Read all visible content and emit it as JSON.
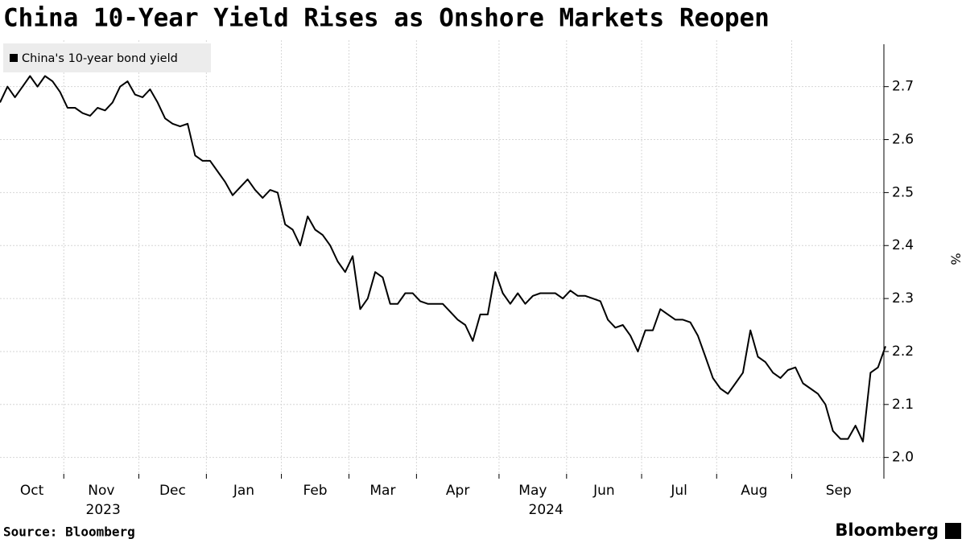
{
  "chart_data": {
    "type": "line",
    "title": "China 10-Year Yield Rises as Onshore Markets Reopen",
    "y_label": "%",
    "source": "Source: Bloomberg",
    "brand": "Bloomberg",
    "categories": [
      "Oct",
      null,
      null,
      null,
      null,
      null,
      null,
      null,
      null,
      "Nov",
      null,
      null,
      null,
      null,
      null,
      null,
      null,
      null,
      null,
      "Dec",
      null,
      null,
      null,
      null,
      null,
      null,
      null,
      null,
      "Jan",
      null,
      null,
      null,
      null,
      null,
      null,
      null,
      null,
      null,
      "Feb",
      null,
      null,
      null,
      null,
      null,
      null,
      null,
      null,
      "Mar",
      null,
      null,
      null,
      null,
      null,
      null,
      null,
      null,
      "Apr",
      null,
      null,
      null,
      null,
      null,
      null,
      null,
      null,
      null,
      null,
      "May",
      null,
      null,
      null,
      null,
      null,
      null,
      null,
      null,
      "Jun",
      null,
      null,
      null,
      null,
      null,
      null,
      null,
      null,
      null,
      "Jul",
      null,
      null,
      null,
      null,
      null,
      null,
      null,
      null,
      null,
      "Aug",
      null,
      null,
      null,
      null,
      null,
      null,
      null,
      null,
      null,
      "Sep",
      null,
      null,
      null,
      null,
      null,
      null,
      null,
      null,
      null,
      null,
      null,
      null
    ],
    "x_groups": [
      {
        "label": "2023",
        "from": "Oct",
        "to": "Dec"
      },
      {
        "label": "2024",
        "from": "Jan",
        "to": "Sep"
      }
    ],
    "series": [
      {
        "name": "China's 10-year bond yield",
        "color": "#000000",
        "values": [
          2.67,
          2.7,
          2.68,
          2.7,
          2.72,
          2.7,
          2.72,
          2.71,
          2.69,
          2.66,
          2.66,
          2.65,
          2.645,
          2.66,
          2.655,
          2.67,
          2.7,
          2.71,
          2.685,
          2.68,
          2.695,
          2.67,
          2.64,
          2.63,
          2.625,
          2.63,
          2.57,
          2.56,
          2.56,
          2.54,
          2.52,
          2.495,
          2.51,
          2.525,
          2.505,
          2.49,
          2.505,
          2.5,
          2.44,
          2.43,
          2.4,
          2.455,
          2.43,
          2.42,
          2.4,
          2.37,
          2.35,
          2.38,
          2.28,
          2.3,
          2.35,
          2.34,
          2.29,
          2.29,
          2.31,
          2.31,
          2.295,
          2.29,
          2.29,
          2.29,
          2.275,
          2.26,
          2.25,
          2.22,
          2.27,
          2.27,
          2.35,
          2.31,
          2.29,
          2.31,
          2.29,
          2.305,
          2.31,
          2.31,
          2.31,
          2.3,
          2.315,
          2.305,
          2.305,
          2.3,
          2.295,
          2.26,
          2.245,
          2.25,
          2.23,
          2.2,
          2.24,
          2.24,
          2.28,
          2.27,
          2.26,
          2.26,
          2.255,
          2.23,
          2.19,
          2.15,
          2.13,
          2.12,
          2.14,
          2.16,
          2.24,
          2.19,
          2.18,
          2.16,
          2.15,
          2.165,
          2.17,
          2.14,
          2.13,
          2.12,
          2.1,
          2.05,
          2.035,
          2.035,
          2.06,
          2.03,
          2.16,
          2.17,
          2.21
        ]
      }
    ],
    "ylim": [
      1.96,
      2.78
    ],
    "yticks": [
      {
        "value": 2,
        "label": "2.0"
      },
      2.1,
      2.2,
      2.3,
      2.4,
      2.5,
      2.6,
      2.7
    ],
    "grid": true,
    "legend": "top-left"
  }
}
